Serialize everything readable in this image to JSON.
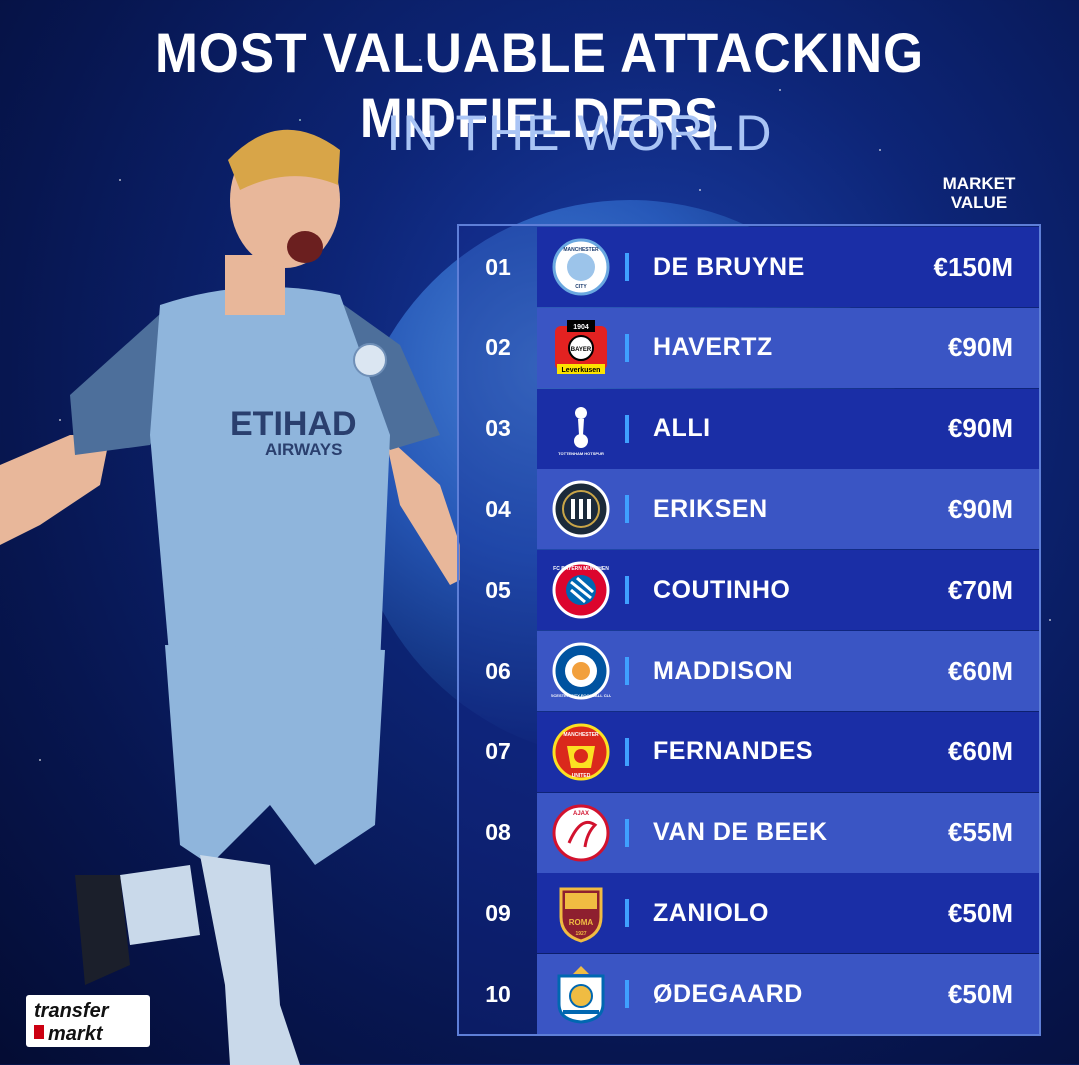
{
  "header": {
    "title": "MOST VALUABLE ATTACKING MIDFIELDERS",
    "subtitle": "IN THE WORLD",
    "column_label_line1": "MARKET",
    "column_label_line2": "VALUE"
  },
  "players": [
    {
      "rank": "01",
      "name": "DE BRUYNE",
      "value": "€150M",
      "crest": "manchester-city-crest-icon"
    },
    {
      "rank": "02",
      "name": "HAVERTZ",
      "value": "€90M",
      "crest": "bayer-leverkusen-crest-icon"
    },
    {
      "rank": "03",
      "name": "ALLI",
      "value": "€90M",
      "crest": "tottenham-crest-icon"
    },
    {
      "rank": "04",
      "name": "ERIKSEN",
      "value": "€90M",
      "crest": "inter-crest-icon"
    },
    {
      "rank": "05",
      "name": "COUTINHO",
      "value": "€70M",
      "crest": "bayern-munchen-crest-icon"
    },
    {
      "rank": "06",
      "name": "MADDISON",
      "value": "€60M",
      "crest": "leicester-city-crest-icon"
    },
    {
      "rank": "07",
      "name": "FERNANDES",
      "value": "€60M",
      "crest": "manchester-united-crest-icon"
    },
    {
      "rank": "08",
      "name": "VAN DE BEEK",
      "value": "€55M",
      "crest": "ajax-crest-icon"
    },
    {
      "rank": "09",
      "name": "ZANIOLO",
      "value": "€50M",
      "crest": "as-roma-crest-icon"
    },
    {
      "rank": "10",
      "name": "ØDEGAARD",
      "value": "€50M",
      "crest": "real-sociedad-crest-icon"
    }
  ],
  "crest_text": {
    "city_top": "MANCHESTER",
    "city_bottom": "CITY",
    "leverkusen_year": "1904",
    "leverkusen_bayer": "BAYER",
    "leverkusen_name": "Leverkusen",
    "spurs": "TOTTENHAM HOTSPUR",
    "bayern": "FC BAYERN MÜNCHEN",
    "leicester": "LEICESTER CITY FOOTBALL CLUB",
    "united_top": "MANCHESTER",
    "united_bottom": "UNITED",
    "ajax": "AJAX",
    "roma": "ROMA",
    "roma_year": "1927"
  },
  "player_photo": {
    "shirt_sponsor_line1": "ETIHAD",
    "shirt_sponsor_line2": "AIRWAYS"
  },
  "branding": {
    "logo_line1": "transfer",
    "logo_line2": "markt"
  },
  "colors": {
    "row_dark": "#1a2ea6",
    "row_light": "#3a55c4",
    "separator": "#3fa0ff",
    "kit_sky_blue": "#8fb5dc"
  }
}
